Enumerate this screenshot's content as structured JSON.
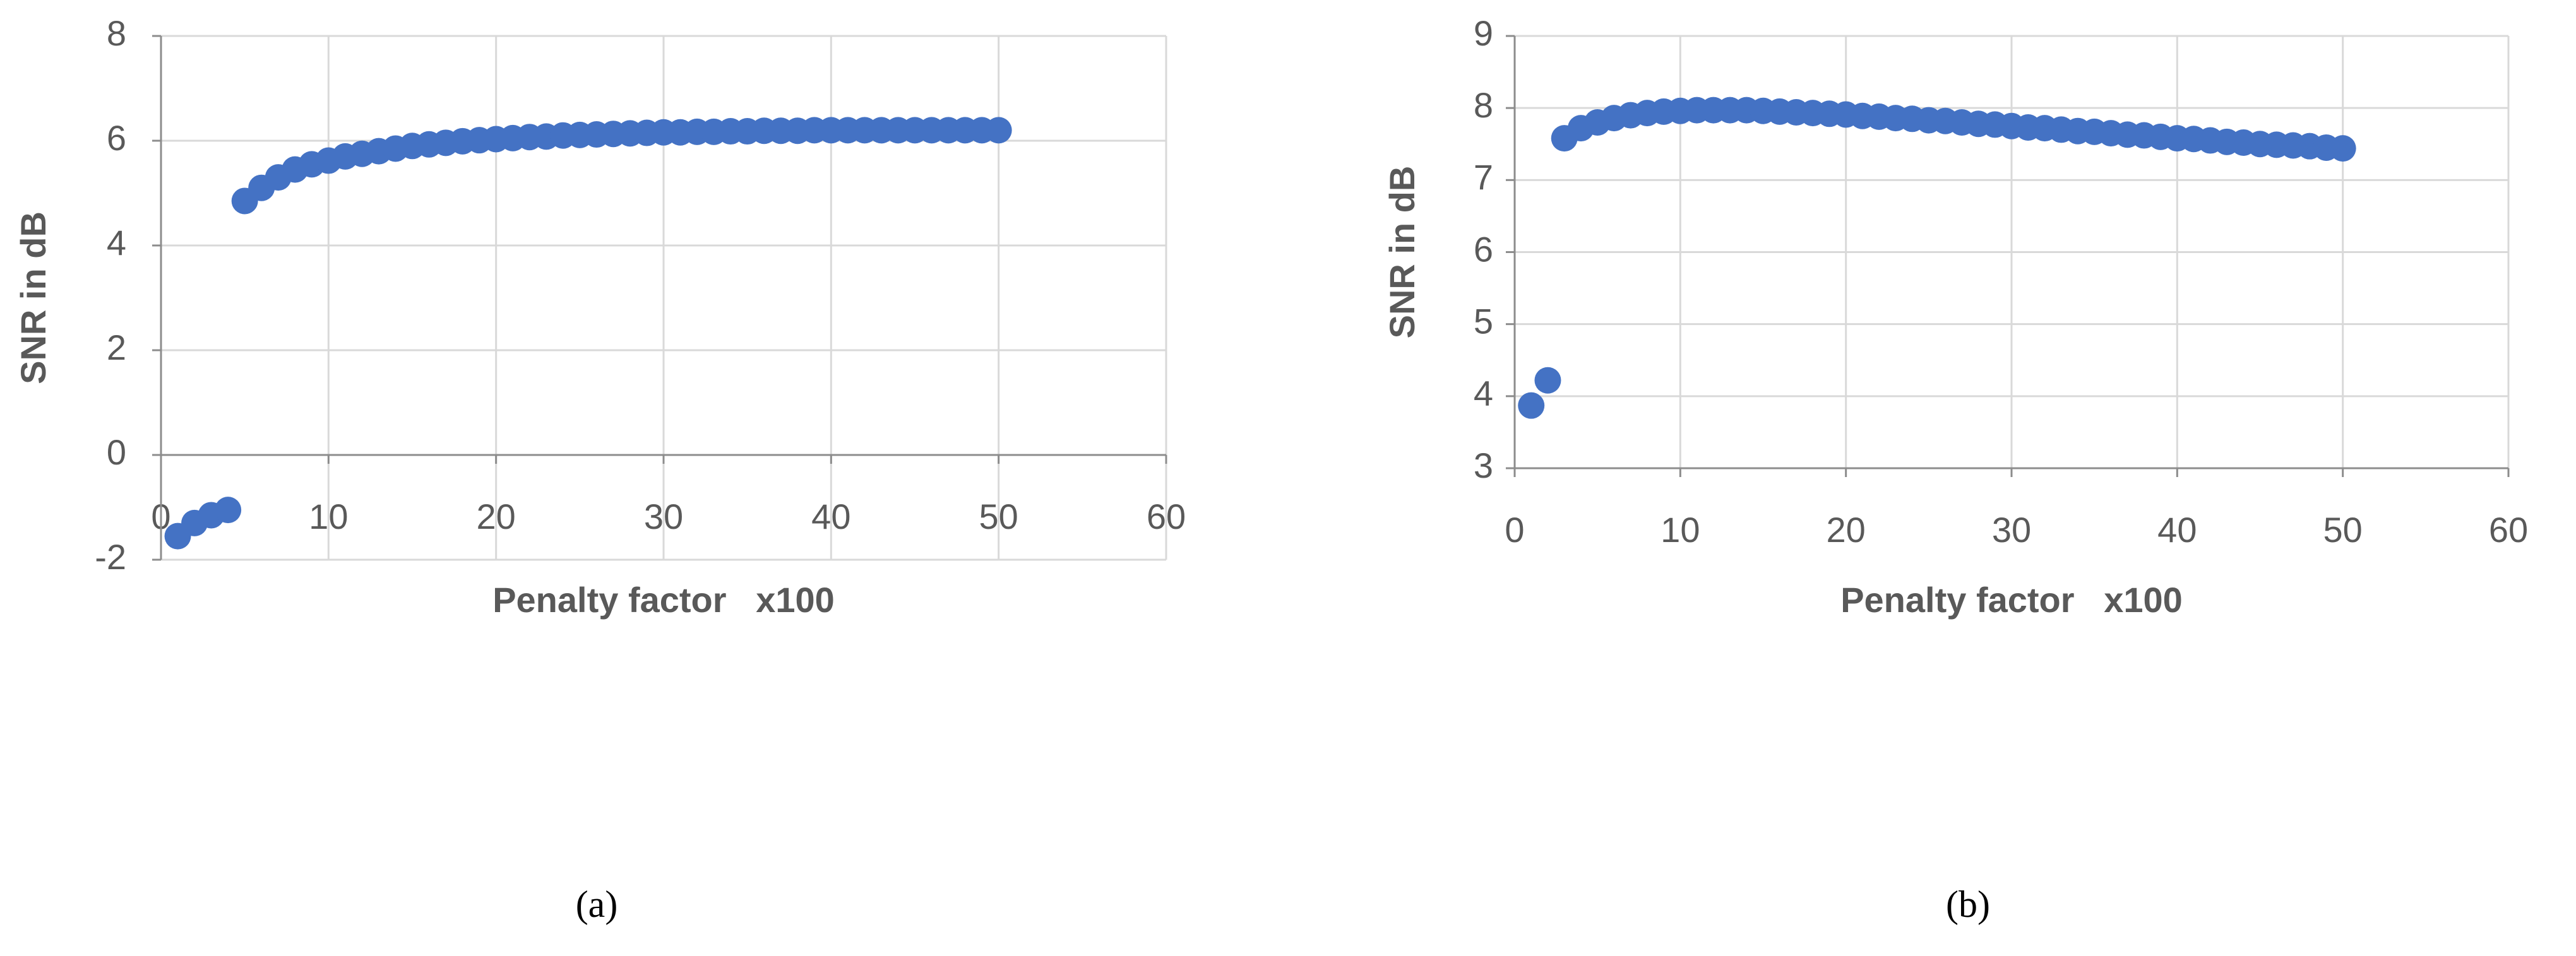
{
  "chart_data": [
    {
      "type": "scatter",
      "caption": "(a)",
      "x_label": "Penalty factor   x100",
      "y_label": "SNR in dB",
      "xlim": [
        0,
        60
      ],
      "xticks": [
        0,
        10,
        20,
        30,
        40,
        50,
        60
      ],
      "ylim": [
        -2,
        8
      ],
      "yticks": [
        -2,
        0,
        2,
        4,
        6,
        8
      ],
      "grid": true,
      "series": [
        {
          "color": "#4472c4",
          "x": [
            1,
            2,
            3,
            4,
            5,
            6,
            7,
            8,
            9,
            10,
            11,
            12,
            13,
            14,
            15,
            16,
            17,
            18,
            19,
            20,
            21,
            22,
            23,
            24,
            25,
            26,
            27,
            28,
            29,
            30,
            31,
            32,
            33,
            34,
            35,
            36,
            37,
            38,
            39,
            40,
            41,
            42,
            43,
            44,
            45,
            46,
            47,
            48,
            49,
            50
          ],
          "values": [
            -1.55,
            -1.3,
            -1.15,
            -1.05,
            4.85,
            5.1,
            5.3,
            5.45,
            5.55,
            5.62,
            5.7,
            5.75,
            5.8,
            5.85,
            5.9,
            5.93,
            5.96,
            5.99,
            6.01,
            6.03,
            6.05,
            6.07,
            6.08,
            6.1,
            6.11,
            6.12,
            6.13,
            6.14,
            6.15,
            6.16,
            6.16,
            6.17,
            6.17,
            6.18,
            6.18,
            6.19,
            6.19,
            6.19,
            6.2,
            6.2,
            6.2,
            6.2,
            6.2,
            6.2,
            6.2,
            6.2,
            6.2,
            6.2,
            6.2,
            6.2
          ]
        }
      ]
    },
    {
      "type": "scatter",
      "caption": "(b)",
      "x_label": "Penalty factor   x100",
      "y_label": "SNR in dB",
      "xlim": [
        0,
        60
      ],
      "xticks": [
        0,
        10,
        20,
        30,
        40,
        50,
        60
      ],
      "ylim": [
        3,
        9
      ],
      "yticks": [
        3,
        4,
        5,
        6,
        7,
        8,
        9
      ],
      "grid": true,
      "series": [
        {
          "color": "#4472c4",
          "x": [
            1,
            2,
            3,
            4,
            5,
            6,
            7,
            8,
            9,
            10,
            11,
            12,
            13,
            14,
            15,
            16,
            17,
            18,
            19,
            20,
            21,
            22,
            23,
            24,
            25,
            26,
            27,
            28,
            29,
            30,
            31,
            32,
            33,
            34,
            35,
            36,
            37,
            38,
            39,
            40,
            41,
            42,
            43,
            44,
            45,
            46,
            47,
            48,
            49,
            50
          ],
          "values": [
            3.87,
            4.22,
            7.58,
            7.72,
            7.8,
            7.86,
            7.9,
            7.93,
            7.95,
            7.96,
            7.97,
            7.97,
            7.97,
            7.97,
            7.96,
            7.95,
            7.94,
            7.93,
            7.92,
            7.91,
            7.89,
            7.88,
            7.86,
            7.85,
            7.83,
            7.82,
            7.8,
            7.78,
            7.77,
            7.75,
            7.73,
            7.72,
            7.7,
            7.68,
            7.67,
            7.65,
            7.63,
            7.62,
            7.6,
            7.58,
            7.57,
            7.55,
            7.53,
            7.52,
            7.5,
            7.49,
            7.48,
            7.47,
            7.45,
            7.44
          ]
        }
      ]
    }
  ]
}
